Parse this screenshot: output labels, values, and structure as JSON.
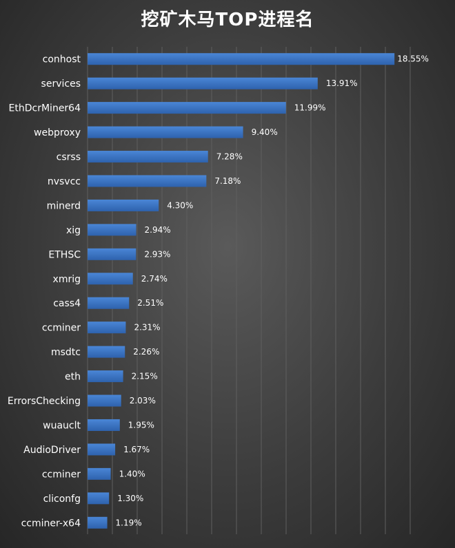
{
  "chart_data": {
    "type": "bar",
    "orientation": "horizontal",
    "title": "挖矿木马TOP进程名",
    "categories": [
      "conhost",
      "services",
      "EthDcrMiner64",
      "webproxy",
      "csrss",
      "nvsvcc",
      "minerd",
      "xig",
      "ETHSC",
      "xmrig",
      "cass4",
      "ccminer",
      "msdtc",
      "eth",
      "ErrorsChecking",
      "wuauclt",
      "AudioDriver",
      "ccminer",
      "cliconfg",
      "ccminer-x64"
    ],
    "values": [
      18.55,
      13.91,
      11.99,
      9.4,
      7.28,
      7.18,
      4.3,
      2.94,
      2.93,
      2.74,
      2.51,
      2.31,
      2.26,
      2.15,
      2.03,
      1.95,
      1.67,
      1.4,
      1.3,
      1.19
    ],
    "value_labels": [
      "18.55%",
      "13.91%",
      "11.99%",
      "9.40%",
      "7.28%",
      "7.18%",
      "4.30%",
      "2.94%",
      "2.93%",
      "2.74%",
      "2.51%",
      "2.31%",
      "2.26%",
      "2.15%",
      "2.03%",
      "1.95%",
      "1.67%",
      "1.40%",
      "1.30%",
      "1.19%"
    ],
    "xlim": [
      0,
      20
    ],
    "grid": "vertical",
    "bar_color": "#3a74c4",
    "background_color": "#404040"
  }
}
